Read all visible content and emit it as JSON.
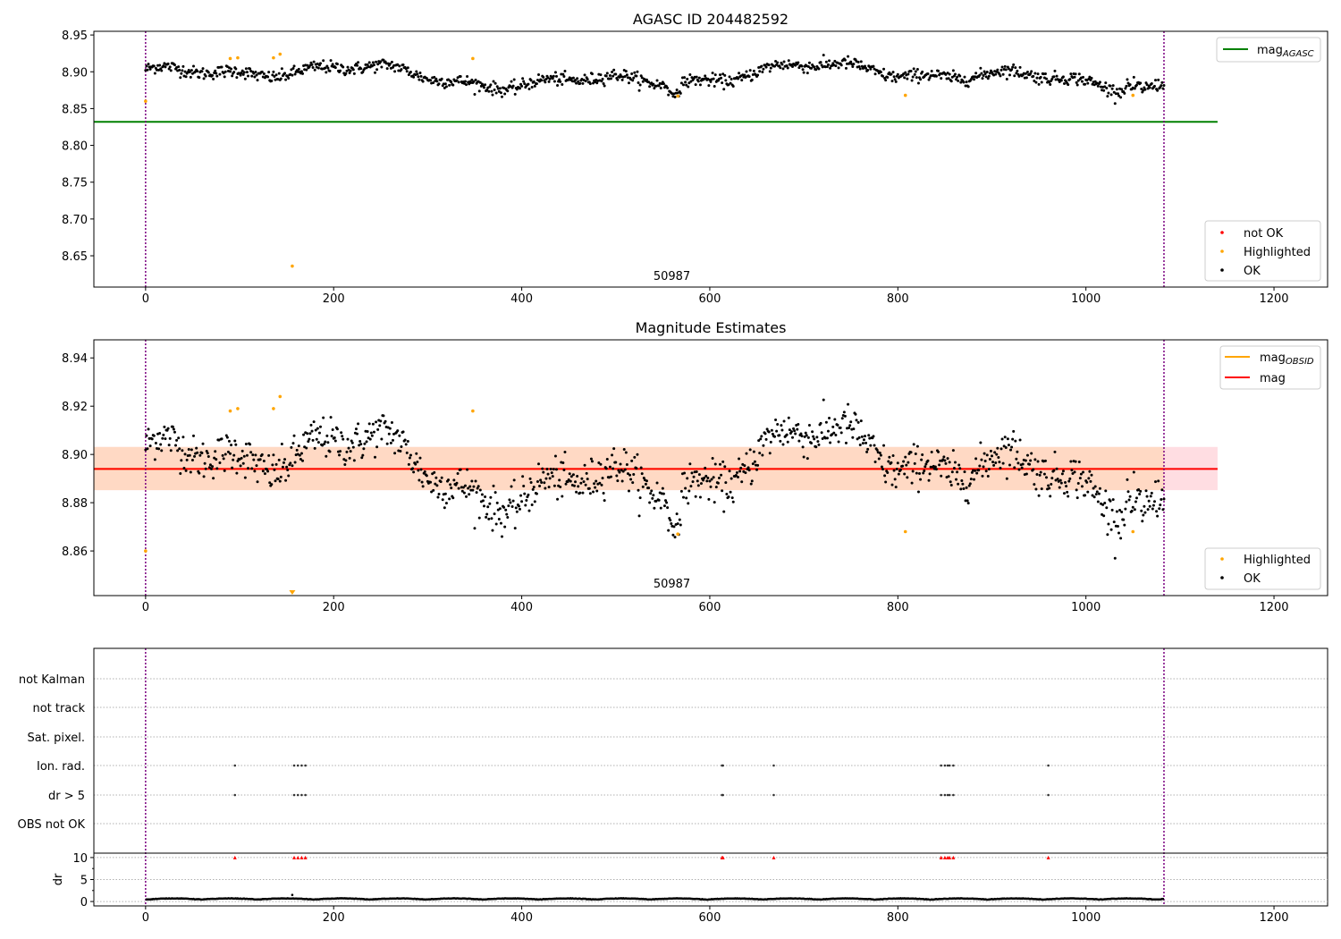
{
  "chart_data": [
    {
      "type": "scatter",
      "title": "AGASC ID 204482592",
      "xlim": [
        -55,
        1257
      ],
      "ylim": [
        8.6075,
        8.955
      ],
      "xticks": [
        0,
        200,
        400,
        600,
        800,
        1000,
        1200
      ],
      "yticks": [
        8.65,
        8.7,
        8.75,
        8.8,
        8.85,
        8.9,
        8.95
      ],
      "annotation": {
        "text": "50987",
        "x": 540,
        "y": 8.617
      },
      "vlines": [
        0,
        1083
      ],
      "series": [
        {
          "name": "mag_AGASC",
          "type": "hline",
          "color": "#008000",
          "y": 8.832,
          "x": [
            -55,
            1140
          ]
        },
        {
          "name": "not OK",
          "color": "#ff0000",
          "points": []
        },
        {
          "name": "Highlighted",
          "color": "#ffa500",
          "points": [
            [
              0,
              8.86
            ],
            [
              90,
              8.918
            ],
            [
              98,
              8.919
            ],
            [
              136,
              8.919
            ],
            [
              143,
              8.924
            ],
            [
              156,
              8.636
            ],
            [
              348,
              8.918
            ],
            [
              566,
              8.867
            ],
            [
              808,
              8.868
            ],
            [
              1050,
              8.868
            ]
          ]
        },
        {
          "name": "OK",
          "color": "#000000",
          "baseline": 8.894,
          "noise": 0.0078,
          "n": 1084
        }
      ],
      "legend": [
        "mag_AGASC"
      ],
      "legend2": [
        "not OK",
        "Highlighted",
        "OK"
      ]
    },
    {
      "type": "scatter",
      "title": "Magnitude Estimates",
      "xlim": [
        -55,
        1257
      ],
      "ylim": [
        8.8415,
        8.9475
      ],
      "xticks": [
        0,
        200,
        400,
        600,
        800,
        1000,
        1200
      ],
      "yticks": [
        8.86,
        8.88,
        8.9,
        8.92,
        8.94
      ],
      "annotation": {
        "text": "50987",
        "x": 540,
        "y": 8.844
      },
      "vlines": [
        0,
        1083
      ],
      "band": {
        "low": 8.8852,
        "high": 8.9031,
        "x": [
          -55,
          1140
        ],
        "color": "#f4a0a8"
      },
      "series": [
        {
          "name": "mag_OBSID",
          "type": "hline",
          "color": "#ffa500",
          "y": 8.894,
          "x": [
            -55,
            1083
          ]
        },
        {
          "name": "mag",
          "type": "hline",
          "color": "#ff0000",
          "y": 8.894,
          "x": [
            -55,
            1140
          ]
        },
        {
          "name": "Highlighted",
          "color": "#ffa500",
          "points": [
            [
              0,
              8.86
            ],
            [
              90,
              8.918
            ],
            [
              98,
              8.919
            ],
            [
              136,
              8.919
            ],
            [
              143,
              8.924
            ],
            [
              348,
              8.918
            ],
            [
              566,
              8.867
            ],
            [
              808,
              8.868
            ],
            [
              1050,
              8.868
            ]
          ],
          "out_of_range": [
            156
          ]
        },
        {
          "name": "OK",
          "color": "#000000",
          "baseline": 8.894,
          "noise": 0.0078,
          "n": 1084
        }
      ],
      "legend": [
        "mag_OBSID",
        "mag"
      ],
      "legend2": [
        "Highlighted",
        "OK"
      ]
    },
    {
      "type": "scatter",
      "xlim": [
        -55,
        1257
      ],
      "xticks": [
        0,
        200,
        400,
        600,
        800,
        1000,
        1200
      ],
      "vlines": [
        0,
        1083
      ],
      "flag_labels": [
        "not Kalman",
        "not track",
        "Sat. pixel.",
        "Ion. rad.",
        "dr > 5",
        "OBS not OK"
      ],
      "flag_points": {
        "Ion. rad.": [
          95,
          158,
          162,
          166,
          170,
          613,
          614,
          668,
          846,
          850,
          853,
          855,
          859,
          960
        ],
        "dr > 5": [
          95,
          158,
          162,
          166,
          170,
          613,
          614,
          668,
          846,
          850,
          853,
          855,
          859,
          960
        ]
      },
      "dr": {
        "ylabel": "dr",
        "ylim": [
          -1,
          11
        ],
        "yticks": [
          0,
          5,
          10
        ],
        "baseline": 0.4,
        "outliers": [
          [
            156,
            1.5
          ]
        ],
        "capped": [
          95,
          158,
          162,
          166,
          170,
          613,
          614,
          668,
          846,
          850,
          853,
          855,
          859,
          960
        ],
        "cap_value": 10,
        "cap_color": "#ff0000"
      }
    }
  ]
}
